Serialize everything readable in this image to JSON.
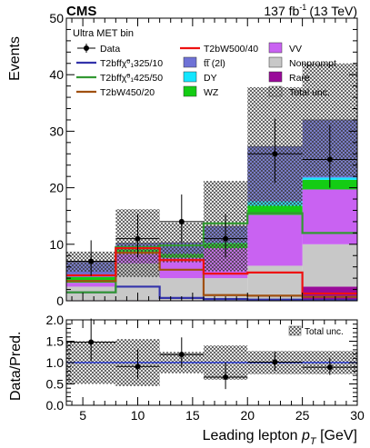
{
  "header": {
    "experiment": "CMS",
    "lumi_value": "137 fb",
    "lumi_exp": "-1",
    "lumi_energy": "(13 TeV)"
  },
  "colors": {
    "VV": "#c962f2",
    "Nonprompt": "#c8c8c8",
    "Rare": "#990a99",
    "WZ": "#14cc14",
    "DY": "#14e6ff",
    "ttbar": "#6f72d6",
    "unc_fill": "#888888",
    "T2bffN1_325_10": "#3333aa",
    "T2bffN1_425_50": "#339933",
    "T2bW450_20": "#a05010",
    "T2bW500_40": "#ee1111",
    "ratio_line": "#2233cc"
  },
  "chart_data": [
    {
      "type": "bar",
      "name": "main",
      "title": "Ultra MET bin",
      "ylabel": "Events",
      "xlim": [
        3.5,
        30
      ],
      "ylim": [
        0,
        50
      ],
      "yticks": [
        0,
        10,
        20,
        30,
        40,
        50
      ],
      "bin_edges": [
        3.5,
        8,
        12,
        16,
        20,
        25,
        30
      ],
      "stack": [
        {
          "name": "Rare",
          "key": "Rare",
          "values": [
            0.1,
            0.1,
            0.1,
            0.1,
            0.1,
            2.5
          ]
        },
        {
          "name": "Nonprompt",
          "key": "Nonprompt",
          "values": [
            2.4,
            6.5,
            3.9,
            3.9,
            6.1,
            7.5
          ]
        },
        {
          "name": "VV",
          "key": "VV",
          "values": [
            0.7,
            1.7,
            3.6,
            5.3,
            9.0,
            9.7
          ]
        },
        {
          "name": "WZ",
          "key": "WZ",
          "values": [
            1.0,
            0.8,
            0.7,
            0.9,
            1.6,
            1.7
          ]
        },
        {
          "name": "DY",
          "key": "DY",
          "values": [
            0.0,
            0.1,
            0.0,
            0.1,
            0.8,
            0.4
          ]
        },
        {
          "name": "tt̅ (2l)",
          "key": "ttbar",
          "values": [
            2.7,
            1.0,
            2.0,
            2.9,
            9.7,
            10.2
          ]
        }
      ],
      "total_unc": [
        1.8,
        6.0,
        3.5,
        8.0,
        10.5,
        10.0
      ],
      "data": {
        "name": "Data",
        "x": [
          5.75,
          10,
          14,
          18,
          22.5,
          27.5
        ],
        "y": [
          7,
          11,
          14,
          11,
          26,
          25
        ],
        "xerr": [
          2.25,
          2,
          2,
          2,
          2.5,
          2.5
        ],
        "yerr_up": [
          3.7,
          4.4,
          4.8,
          4.4,
          6.2,
          6.1
        ],
        "yerr_down": [
          2.6,
          3.3,
          3.7,
          3.3,
          5.1,
          5.0
        ]
      },
      "signals": [
        {
          "name": "T2bffχ̃⁰₁325/10",
          "key": "T2bffN1_325_10",
          "values": [
            1.5,
            2.5,
            0.5,
            0.3,
            0.2,
            0.1
          ]
        },
        {
          "name": "T2bffχ̃⁰₁425/50",
          "key": "T2bffN1_425_50",
          "values": [
            1.5,
            9.5,
            9.8,
            13.7,
            15.5,
            12.0
          ]
        },
        {
          "name": "T2bW450/20",
          "key": "T2bW450_20",
          "values": [
            3.5,
            8.5,
            5.5,
            1.0,
            0.9,
            0.7
          ]
        },
        {
          "name": "T2bW500/40",
          "key": "T2bW500_40",
          "values": [
            4.5,
            9.3,
            7.2,
            4.8,
            5.0,
            1.3
          ]
        }
      ]
    },
    {
      "type": "scatter",
      "name": "ratio",
      "ylabel": "Data/Pred.",
      "xlabel_main": "Leading lepton ",
      "xlabel_var": "p",
      "xlabel_sub": "T",
      "xlabel_unit": " [GeV]",
      "xlim": [
        3.5,
        30
      ],
      "ylim": [
        0,
        2
      ],
      "yticks": [
        "0.0",
        "0.5",
        "1.0",
        "1.5",
        "2.0"
      ],
      "xticks": [
        5,
        10,
        15,
        20,
        25,
        30
      ],
      "x": [
        5.75,
        10,
        14,
        18,
        22.5,
        27.5
      ],
      "y": [
        1.48,
        0.91,
        1.19,
        0.66,
        1.01,
        0.89
      ],
      "xerr": [
        2.25,
        2,
        2,
        2,
        2.5,
        2.5
      ],
      "yerr_up": [
        0.55,
        0.4,
        0.4,
        0.35,
        0.24,
        0.22
      ],
      "yerr_down": [
        0.45,
        0.3,
        0.3,
        0.28,
        0.2,
        0.18
      ],
      "unc_band": [
        0.5,
        0.55,
        0.25,
        0.4,
        0.27,
        0.27
      ],
      "legend": "Total unc."
    }
  ],
  "legend": {
    "col1": [
      {
        "label": "Data",
        "kind": "data"
      },
      {
        "label": "T2bffχ̃⁰₁325/10",
        "kind": "line",
        "key": "T2bffN1_325_10"
      },
      {
        "label": "T2bffχ̃⁰₁425/50",
        "kind": "line",
        "key": "T2bffN1_425_50"
      },
      {
        "label": "T2bW450/20",
        "kind": "line",
        "key": "T2bW450_20"
      }
    ],
    "col2": [
      {
        "label": "T2bW500/40",
        "kind": "line",
        "key": "T2bW500_40"
      },
      {
        "label": "tt̅ (2l)",
        "kind": "box",
        "key": "ttbar"
      },
      {
        "label": "DY",
        "kind": "box",
        "key": "DY"
      },
      {
        "label": "WZ",
        "kind": "box",
        "key": "WZ"
      }
    ],
    "col3": [
      {
        "label": "VV",
        "kind": "box",
        "key": "VV"
      },
      {
        "label": "Nonprompt",
        "kind": "box",
        "key": "Nonprompt"
      },
      {
        "label": "Rare",
        "kind": "box",
        "key": "Rare"
      },
      {
        "label": "Total unc.",
        "kind": "hatch",
        "key": "unc_fill"
      }
    ]
  }
}
